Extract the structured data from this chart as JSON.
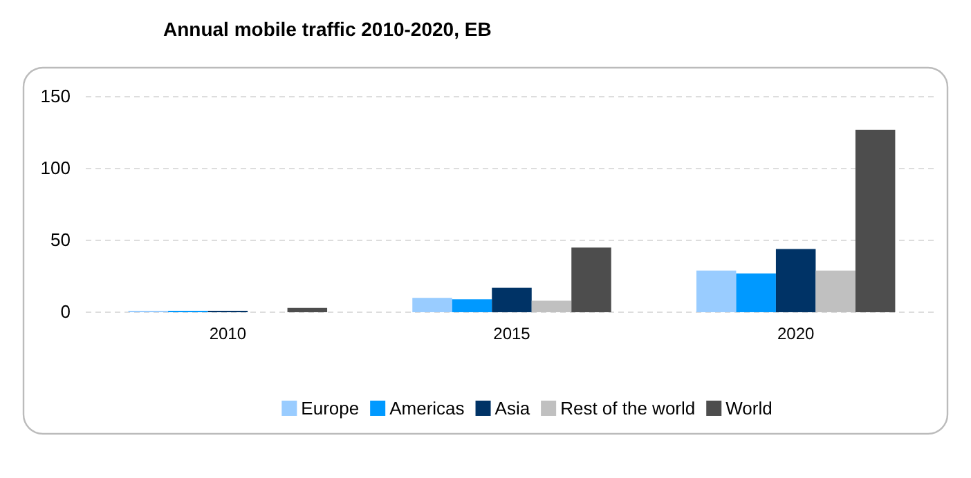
{
  "chart_data": {
    "type": "bar",
    "title": "Annual mobile traffic 2010-2020, EB",
    "categories": [
      "2010",
      "2015",
      "2020"
    ],
    "series": [
      {
        "name": "Europe",
        "color": "#99ccff",
        "values": [
          1,
          10,
          29
        ]
      },
      {
        "name": "Americas",
        "color": "#0099ff",
        "values": [
          1,
          9,
          27
        ]
      },
      {
        "name": "Asia",
        "color": "#003366",
        "values": [
          1,
          17,
          44
        ]
      },
      {
        "name": "Rest of the world",
        "color": "#c0c0c0",
        "values": [
          0,
          8,
          29
        ]
      },
      {
        "name": "World",
        "color": "#4d4d4d",
        "values": [
          3,
          45,
          127
        ]
      }
    ],
    "ylim": [
      0,
      150
    ],
    "yticks": [
      0,
      50,
      100,
      150
    ],
    "grid": "y",
    "legend": "bottom"
  }
}
